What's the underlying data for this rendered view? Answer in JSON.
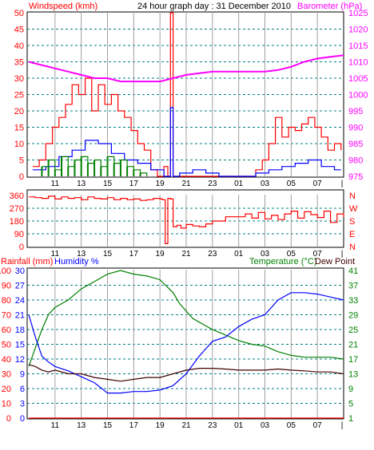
{
  "header": {
    "title": "24 hour graph day : 31 December 2010",
    "left_label": "Windspeed (kmh)",
    "right_label": "Barometer (hPa)"
  },
  "colors": {
    "red": "#ff0000",
    "magenta": "#ff00ff",
    "blue": "#0000ff",
    "green": "#008000",
    "darkred": "#400000",
    "grid_v": "#a0a0a0",
    "grid_h": "#008080",
    "text_green": "#008000"
  },
  "chart_data": [
    {
      "id": "wind",
      "type": "line",
      "x_ticks": [
        "11",
        "13",
        "15",
        "17",
        "19",
        "21",
        "23",
        "01",
        "03",
        "05",
        "07"
      ],
      "left_axis": {
        "label": "Windspeed (kmh)",
        "ticks": [
          0,
          5,
          10,
          15,
          20,
          25,
          30,
          35,
          40,
          45,
          50
        ],
        "ylim": [
          0,
          50
        ]
      },
      "right_axis": {
        "label": "Barometer (hPa)",
        "ticks": [
          975,
          980,
          985,
          990,
          995,
          1000,
          1005,
          1010,
          1015,
          1020,
          1025
        ],
        "ylim": [
          975,
          1025
        ]
      },
      "series": [
        {
          "role": "gust",
          "color": "#ff0000",
          "axis": "left",
          "x": [
            9.3,
            9.8,
            10.3,
            10.8,
            11.3,
            11.8,
            12.3,
            12.8,
            13.3,
            13.8,
            14.3,
            14.8,
            15.3,
            15.8,
            16.3,
            16.8,
            17.3,
            17.8,
            18.3,
            18.8,
            19.3,
            19.6,
            19.8,
            20.0,
            20.3,
            20.8,
            21.5,
            22.5,
            23.5,
            24.5,
            25.5,
            26.0,
            26.3,
            26.8,
            27.3,
            27.8,
            28.3,
            28.8,
            29.3,
            29.8,
            30.3,
            30.8,
            31.3,
            31.8,
            32.3,
            32.8
          ],
          "y": [
            3,
            5,
            10,
            15,
            18,
            22,
            28,
            25,
            30,
            20,
            28,
            22,
            25,
            20,
            18,
            14,
            10,
            8,
            2,
            0,
            3,
            0,
            50,
            0,
            0,
            0,
            0,
            0,
            0,
            0,
            0,
            0,
            2,
            5,
            10,
            18,
            12,
            15,
            14,
            16,
            18,
            15,
            12,
            8,
            10,
            8
          ]
        },
        {
          "role": "average",
          "color": "#0000ff",
          "axis": "left",
          "x": [
            9.3,
            10.3,
            11.3,
            12.3,
            13.3,
            14.3,
            15.3,
            16.3,
            17.3,
            18.3,
            19.3,
            19.7,
            19.8,
            20.0,
            20.5,
            21.5,
            22.5,
            23.5,
            24.5,
            25.5,
            26.3,
            27.3,
            28.3,
            29.3,
            30.3,
            31.3,
            32.3,
            32.8
          ],
          "y": [
            2,
            3,
            6,
            8,
            11,
            10,
            7,
            5,
            4,
            2,
            0,
            0,
            21,
            0,
            1,
            2,
            1,
            0,
            0,
            0,
            1,
            2,
            3,
            4,
            5,
            3,
            2,
            2
          ]
        },
        {
          "role": "calm",
          "color": "#008000",
          "axis": "left",
          "x": [
            10.0,
            10.5,
            11.0,
            11.5,
            12.0,
            12.5,
            13.0,
            13.5,
            14.0,
            14.5,
            15.0,
            15.5,
            16.0,
            16.5,
            17.0,
            17.5,
            18.0
          ],
          "y": [
            3,
            5,
            2,
            6,
            3,
            5,
            6,
            4,
            5,
            3,
            6,
            4,
            5,
            3,
            2,
            1,
            0
          ]
        },
        {
          "role": "pressure",
          "color": "#ff00ff",
          "axis": "right",
          "x": [
            9.0,
            10.0,
            11.0,
            12.0,
            13.0,
            14.0,
            15.0,
            16.0,
            17.0,
            18.0,
            19.0,
            20.0,
            21.0,
            22.0,
            23.0,
            24.0,
            25.0,
            26.0,
            27.0,
            28.0,
            29.0,
            30.0,
            31.0,
            32.0,
            33.0
          ],
          "y": [
            1010,
            1009,
            1008,
            1007,
            1006,
            1005,
            1005,
            1004,
            1004,
            1004,
            1004,
            1005,
            1006,
            1006.5,
            1007,
            1007,
            1007,
            1007,
            1007,
            1007.5,
            1008.5,
            1010,
            1011,
            1011.5,
            1012
          ]
        }
      ]
    },
    {
      "id": "direction",
      "type": "line",
      "x_ticks": [
        "11",
        "13",
        "15",
        "17",
        "19",
        "21",
        "23",
        "01",
        "03",
        "05",
        "07"
      ],
      "left_axis": {
        "ticks": [
          0,
          90,
          180,
          270,
          360
        ],
        "ylim": [
          0,
          360
        ]
      },
      "right_axis": {
        "ticks": [
          "N",
          "E",
          "S",
          "W",
          "N"
        ]
      },
      "series": [
        {
          "role": "direction",
          "color": "#ff0000",
          "x": [
            9.0,
            9.5,
            10.0,
            10.5,
            11.0,
            11.5,
            12.0,
            12.5,
            13.0,
            13.5,
            14.0,
            14.5,
            15.0,
            15.5,
            16.0,
            16.5,
            17.0,
            17.5,
            18.0,
            18.5,
            19.0,
            19.2,
            19.4,
            19.6,
            19.8,
            20.0,
            20.3,
            20.6,
            21.0,
            21.5,
            22.0,
            22.5,
            23.0,
            24.0,
            25.0,
            25.5,
            26.0,
            26.5,
            27.0,
            27.5,
            28.0,
            28.5,
            29.0,
            29.5,
            30.0,
            30.5,
            31.0,
            31.5,
            32.0,
            32.5,
            33.0
          ],
          "y": [
            350,
            345,
            340,
            355,
            335,
            350,
            340,
            345,
            330,
            350,
            340,
            335,
            345,
            330,
            340,
            330,
            335,
            325,
            330,
            340,
            335,
            330,
            20,
            340,
            335,
            140,
            150,
            130,
            155,
            145,
            140,
            160,
            180,
            210,
            210,
            230,
            200,
            240,
            195,
            220,
            190,
            230,
            250,
            200,
            245,
            225,
            205,
            250,
            170,
            230,
            210
          ]
        }
      ]
    },
    {
      "id": "temp",
      "type": "line",
      "x_ticks": [
        "11",
        "13",
        "15",
        "17",
        "19",
        "21",
        "23",
        "01",
        "03",
        "05",
        "07"
      ],
      "left_axis": {
        "label": "Rainfall (mm)",
        "ticks": [
          0,
          10,
          20,
          30,
          40,
          50,
          60,
          70,
          80,
          90,
          100
        ],
        "ylim": [
          0,
          100
        ]
      },
      "left_axis2": {
        "label": "Humidity %",
        "ticks": [
          0,
          3,
          6,
          9,
          12,
          15,
          18,
          21,
          24,
          27,
          30
        ],
        "ylim": [
          0,
          30
        ]
      },
      "right_axis": {
        "label": "Temperature (°C)",
        "ticks": [
          1,
          5,
          9,
          13,
          17,
          21,
          25,
          29,
          33,
          37,
          41
        ],
        "ylim": [
          1,
          41
        ]
      },
      "right_label2": "Dew Point",
      "series": [
        {
          "role": "temperature",
          "color": "#008000",
          "axis": "right",
          "x": [
            9.0,
            9.5,
            10.0,
            10.5,
            11.0,
            12.0,
            13.0,
            14.0,
            15.0,
            16.0,
            17.0,
            18.0,
            19.0,
            20.0,
            20.5,
            21.0,
            21.5,
            22.0,
            23.0,
            24.0,
            25.0,
            26.0,
            27.0,
            28.0,
            29.0,
            30.0,
            31.0,
            32.0,
            33.0
          ],
          "y": [
            15,
            20,
            25,
            29,
            31,
            33,
            36,
            38,
            40,
            41,
            40,
            39.5,
            38.5,
            35,
            32,
            30,
            28,
            27,
            25,
            23.5,
            22,
            21,
            20.5,
            19,
            18,
            17.5,
            17.5,
            17.5,
            17
          ]
        },
        {
          "role": "humidity",
          "color": "#0000ff",
          "axis": "left",
          "x": [
            9.0,
            9.5,
            10.0,
            10.5,
            11.0,
            12.0,
            13.0,
            14.0,
            15.0,
            16.0,
            17.0,
            18.0,
            19.0,
            20.0,
            21.0,
            22.0,
            23.0,
            24.0,
            25.0,
            26.0,
            27.0,
            28.0,
            29.0,
            30.0,
            31.0,
            32.0,
            33.0
          ],
          "y": [
            70,
            55,
            42,
            38,
            35,
            32,
            28,
            24,
            17,
            17,
            18,
            18,
            19,
            22,
            30,
            42,
            52,
            55,
            62,
            67,
            70,
            80,
            85,
            85,
            84,
            82,
            80
          ]
        },
        {
          "role": "dewpoint",
          "color": "#400000",
          "axis": "right",
          "x": [
            9.0,
            9.5,
            10.0,
            10.5,
            11.0,
            12.0,
            13.0,
            14.0,
            15.0,
            16.0,
            17.0,
            18.0,
            19.0,
            20.0,
            21.0,
            22.0,
            23.0,
            24.0,
            25.0,
            26.0,
            27.0,
            28.0,
            29.0,
            30.0,
            31.0,
            32.0,
            33.0
          ],
          "y": [
            15.5,
            15,
            14,
            13.5,
            14,
            13,
            13,
            12,
            11.5,
            11,
            11.5,
            12,
            12,
            13,
            14,
            14.5,
            14.5,
            14.3,
            14,
            14,
            14,
            14.3,
            14,
            13.8,
            13.5,
            13.5,
            13
          ]
        },
        {
          "role": "rainfall",
          "color": "#ff0000",
          "axis": "left",
          "x": [
            9.0,
            33.0
          ],
          "y": [
            0,
            0
          ]
        }
      ]
    }
  ]
}
